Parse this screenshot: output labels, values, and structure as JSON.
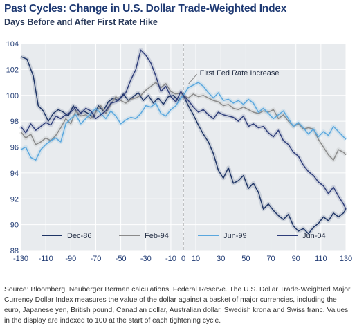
{
  "title": "Past Cycles: Change in U.S. Dollar Trade-Weighted Index",
  "subtitle": "Days Before and After First Rate Hike",
  "source": "Source: Bloomberg, Neuberger Berman calculations, Federal Reserve. The U.S. Dollar Trade-Weighted Major Currency Dollar Index measures the value of the dollar against a basket of major currencies, including the euro, Japanese yen, British pound, Canadian dollar, Australian dollar, Swedish krona and Swiss franc. Values in the display are indexed to 100 at the start of each tightening cycle.",
  "colors": {
    "plot_bg": "#e8ebee",
    "grid": "#ffffff",
    "axis_text": "#1f3a73"
  },
  "chart_data": {
    "type": "line",
    "xlim": [
      -130,
      130
    ],
    "ylim": [
      88,
      104
    ],
    "x_ticks": [
      -130,
      -110,
      -90,
      -70,
      -50,
      -30,
      -10,
      0,
      10,
      30,
      50,
      70,
      90,
      110,
      130
    ],
    "y_ticks": [
      88,
      90,
      92,
      94,
      96,
      98,
      100,
      102,
      104
    ],
    "grid": true,
    "vline_x": 0,
    "annotation": {
      "text": "First Fed Rate Increase",
      "x": 2,
      "y": 101.0
    },
    "legend_position": "bottom",
    "series": [
      {
        "name": "Dec-86",
        "color": "#1f3566",
        "x": [
          -130,
          -125,
          -120,
          -116,
          -112,
          -108,
          -104,
          -100,
          -96,
          -92,
          -88,
          -84,
          -80,
          -76,
          -72,
          -68,
          -64,
          -60,
          -56,
          -52,
          -48,
          -44,
          -40,
          -36,
          -32,
          -28,
          -24,
          -20,
          -16,
          -12,
          -8,
          -4,
          0,
          4,
          8,
          12,
          16,
          20,
          24,
          28,
          32,
          36,
          40,
          44,
          48,
          52,
          56,
          60,
          64,
          68,
          72,
          76,
          80,
          84,
          88,
          92,
          96,
          100,
          104,
          108,
          112,
          116,
          120,
          124,
          128,
          130
        ],
        "y": [
          103,
          102.8,
          101.5,
          99.2,
          98.8,
          98,
          98.6,
          98.9,
          98.7,
          98.4,
          99.2,
          98.5,
          98.8,
          98.6,
          98.3,
          99.2,
          98.8,
          99.5,
          99.8,
          99.6,
          100.1,
          99.6,
          99.9,
          100.2,
          99.6,
          100,
          99.4,
          99.8,
          99.3,
          99.9,
          100,
          99.6,
          100,
          99.2,
          98.5,
          97.7,
          97,
          96.4,
          95.5,
          94.2,
          93.6,
          94.4,
          93.2,
          93.4,
          93.8,
          92.8,
          93.2,
          92.5,
          91.2,
          91.6,
          91.1,
          90.7,
          90.4,
          90.8,
          89.9,
          89.5,
          89.7,
          89.3,
          89.8,
          90.1,
          90.6,
          90.3,
          90.9,
          90.6,
          90.9,
          91.2
        ]
      },
      {
        "name": "Feb-94",
        "color": "#8a8a8a",
        "x": [
          -130,
          -126,
          -122,
          -118,
          -114,
          -110,
          -106,
          -102,
          -98,
          -94,
          -90,
          -86,
          -82,
          -78,
          -74,
          -70,
          -66,
          -62,
          -58,
          -54,
          -50,
          -46,
          -42,
          -38,
          -34,
          -30,
          -26,
          -22,
          -18,
          -14,
          -10,
          -6,
          -2,
          0,
          4,
          8,
          12,
          16,
          20,
          24,
          28,
          32,
          36,
          40,
          44,
          48,
          52,
          56,
          60,
          64,
          68,
          72,
          76,
          80,
          84,
          88,
          92,
          96,
          100,
          104,
          108,
          112,
          116,
          120,
          124,
          128,
          130
        ],
        "y": [
          97.2,
          96.7,
          97,
          96.2,
          96.4,
          96.7,
          96.5,
          96.9,
          97.5,
          98.2,
          97.8,
          98.8,
          98.4,
          98.5,
          98.2,
          98.7,
          99.2,
          98.6,
          99.3,
          99.9,
          99.6,
          99.4,
          99.7,
          99.8,
          100,
          100.4,
          100.7,
          101,
          100.6,
          100.9,
          100.3,
          100.1,
          100.2,
          100,
          99.8,
          100.1,
          99.9,
          100,
          99.8,
          99.6,
          99.5,
          99.2,
          99.3,
          99,
          98.9,
          99.1,
          98.9,
          98.7,
          98.6,
          98.8,
          98.7,
          98.9,
          98.2,
          98.5,
          98,
          97.6,
          97.8,
          97.4,
          97.5,
          97.4,
          96.6,
          96,
          95.4,
          95,
          95.8,
          95.6,
          95.4
        ]
      },
      {
        "name": "Jun-99",
        "color": "#5aa7de",
        "x": [
          -130,
          -126,
          -122,
          -118,
          -114,
          -110,
          -106,
          -102,
          -98,
          -94,
          -90,
          -86,
          -82,
          -78,
          -74,
          -70,
          -66,
          -62,
          -58,
          -54,
          -50,
          -46,
          -42,
          -38,
          -34,
          -30,
          -26,
          -22,
          -18,
          -14,
          -10,
          -6,
          -2,
          0,
          4,
          8,
          12,
          16,
          20,
          24,
          28,
          32,
          36,
          40,
          44,
          48,
          52,
          56,
          60,
          64,
          68,
          72,
          76,
          80,
          84,
          88,
          92,
          96,
          100,
          104,
          108,
          112,
          116,
          120,
          124,
          128,
          130
        ],
        "y": [
          95.8,
          96,
          95.2,
          95,
          95.8,
          96.2,
          96.5,
          96.7,
          96.4,
          97.8,
          98.2,
          98.5,
          97.8,
          98.2,
          98.6,
          99,
          98.6,
          98.2,
          98.8,
          98.4,
          97.8,
          98.1,
          98.3,
          98.2,
          98.6,
          99.2,
          99.1,
          99.4,
          98.6,
          98.4,
          98.9,
          99.2,
          99.8,
          100,
          100.6,
          100.8,
          101,
          100.7,
          100.2,
          99.8,
          100.2,
          99.6,
          99.7,
          99.4,
          99.6,
          99.3,
          99.7,
          99.4,
          98.7,
          99,
          98.6,
          98.2,
          98.5,
          98.8,
          98.2,
          97.6,
          97.9,
          97.5,
          97,
          97.4,
          96.8,
          97.2,
          96.9,
          97.6,
          97.2,
          96.8,
          96.6
        ]
      },
      {
        "name": "Jun-04",
        "color": "#2f3e7a",
        "x": [
          -130,
          -126,
          -122,
          -118,
          -114,
          -110,
          -106,
          -102,
          -98,
          -94,
          -90,
          -86,
          -82,
          -78,
          -74,
          -70,
          -66,
          -62,
          -58,
          -54,
          -50,
          -46,
          -42,
          -38,
          -34,
          -30,
          -26,
          -22,
          -18,
          -14,
          -10,
          -6,
          -2,
          0,
          4,
          8,
          12,
          16,
          20,
          24,
          28,
          32,
          36,
          40,
          44,
          48,
          52,
          56,
          60,
          64,
          68,
          72,
          76,
          80,
          84,
          88,
          92,
          96,
          100,
          104,
          108,
          112,
          116,
          120,
          124,
          128,
          130
        ],
        "y": [
          97.6,
          97.1,
          97.8,
          97.3,
          97.6,
          97.9,
          97.7,
          98.4,
          98.2,
          98.5,
          98.7,
          99.1,
          98.6,
          99,
          98.8,
          98.2,
          98.5,
          98.8,
          99.4,
          99.5,
          99.8,
          100.2,
          101.2,
          102,
          103.5,
          103.1,
          102.5,
          101.5,
          100.3,
          100.7,
          99.9,
          99.5,
          100.3,
          100,
          99.6,
          99.1,
          98.7,
          98.9,
          98.5,
          98.2,
          98.7,
          98.5,
          98.4,
          98.3,
          98,
          98.4,
          97.6,
          97.8,
          97.5,
          97.6,
          97.1,
          96.8,
          97.3,
          96.5,
          96.2,
          95.6,
          95.3,
          94.6,
          94.1,
          93.8,
          93.3,
          93,
          92.4,
          92.9,
          92.2,
          91.6,
          91.2
        ]
      }
    ]
  }
}
